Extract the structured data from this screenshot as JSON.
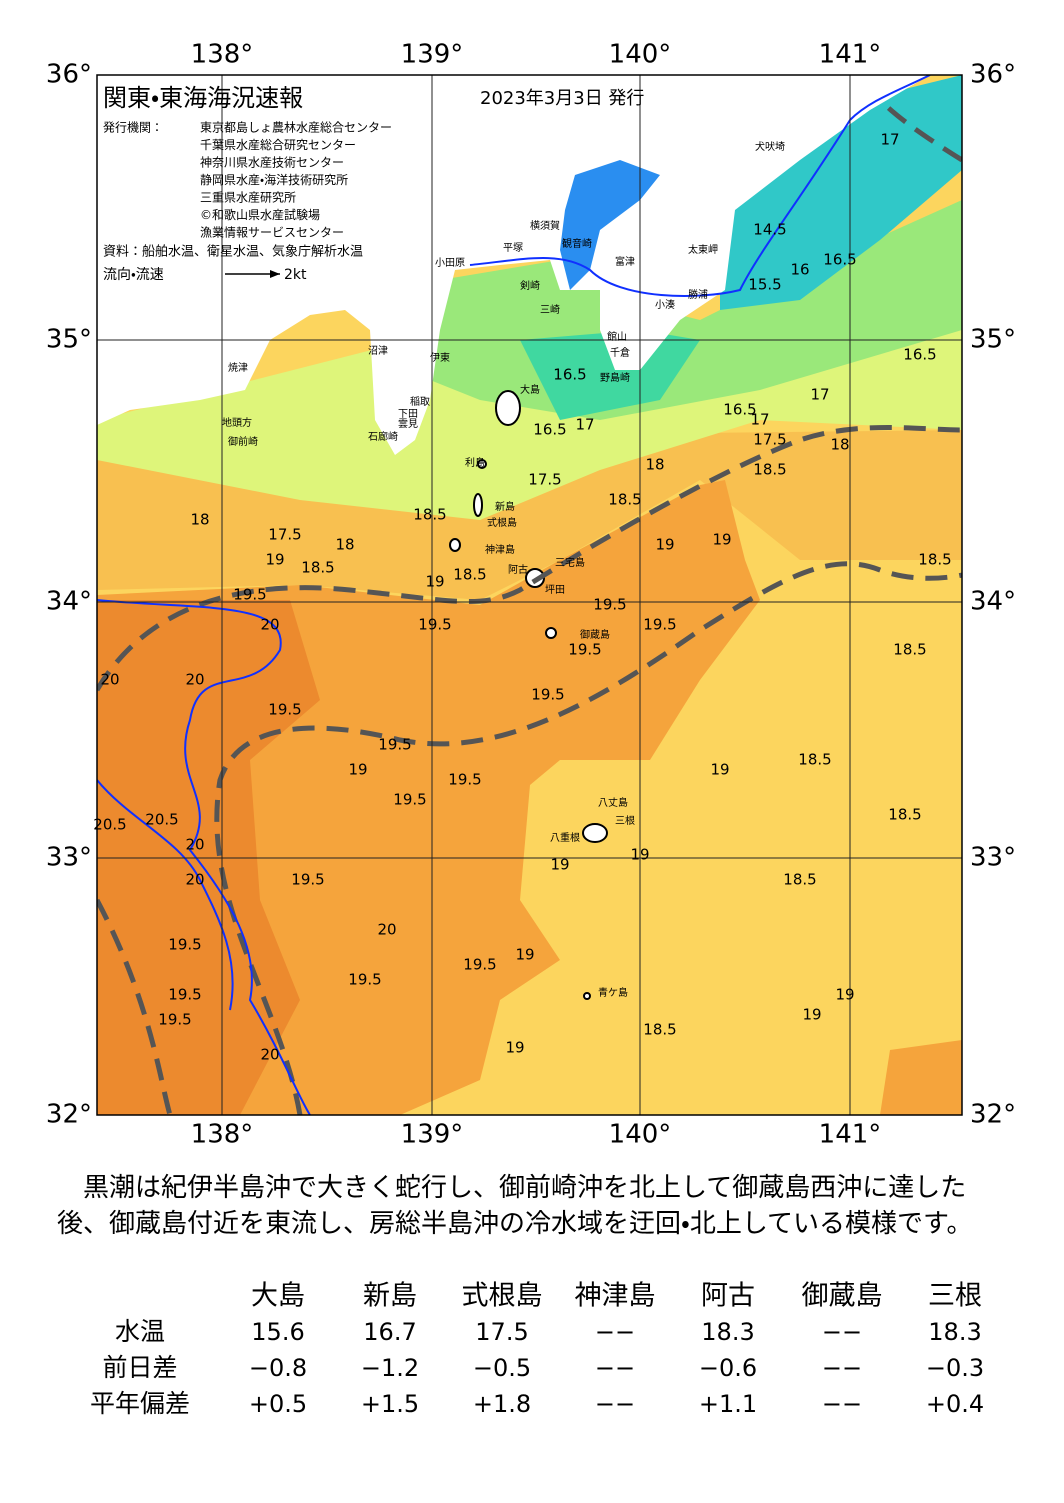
{
  "header": {
    "title": "関東・東海海況速報",
    "date": "2023年3月3日 発行",
    "publisher_label": "発行機関：",
    "publishers": [
      "東京都島しょ農林水産総合センター",
      "千葉県水産総合研究センター",
      "神奈川県水産技術センター",
      "静岡県水産・海洋技術研究所",
      "三重県水産研究所",
      "©和歌山県水産試験場",
      "漁業情報サービスセンター"
    ],
    "source": "資料：船舶水温、衛星水温、気象庁解析水温",
    "flow_label": "流向・流速",
    "flow_scale": "2kt"
  },
  "map": {
    "lon_labels": [
      "138°",
      "139°",
      "140°",
      "141°"
    ],
    "lat_labels": [
      "36°",
      "35°",
      "34°",
      "33°",
      "32°"
    ],
    "places": [
      "犬吠埼",
      "太東岬",
      "勝浦",
      "小湊",
      "館山",
      "千倉",
      "野島崎",
      "富津",
      "横須賀",
      "観音崎",
      "剣崎",
      "三崎",
      "平塚",
      "小田原",
      "大島",
      "利島",
      "新島",
      "式根島",
      "神津島",
      "阿古",
      "三宅島",
      "坪田",
      "御蔵島",
      "八丈島",
      "三根",
      "八重根",
      "青ケ島",
      "石廊崎",
      "下田",
      "稲取",
      "雲見",
      "御前崎",
      "地頭方",
      "焼津",
      "沼津",
      "伊東"
    ],
    "contours": [
      "17",
      "14.5",
      "16.5",
      "15.5",
      "16",
      "16.5",
      "16.5",
      "16.5",
      "17",
      "17",
      "16.5",
      "17",
      "17.5",
      "18",
      "18",
      "17.5",
      "18.5",
      "18.5",
      "18.5",
      "18",
      "17.5",
      "19",
      "18",
      "18.5",
      "18.5",
      "19",
      "19",
      "19",
      "18.5",
      "19.5",
      "20",
      "19.5",
      "19.5",
      "19.5",
      "19.5",
      "18.5",
      "19.5",
      "20",
      "20",
      "19.5",
      "19.5",
      "19.5",
      "19",
      "19.5",
      "18.5",
      "19",
      "18.5",
      "20.5",
      "20.5",
      "20",
      "20",
      "19.5",
      "19",
      "19",
      "18.5",
      "20",
      "19.5",
      "19.5",
      "19",
      "19.5",
      "19.5",
      "19.5",
      "18.5",
      "19",
      "19",
      "19",
      "20"
    ]
  },
  "text": {
    "paragraph": "黒潮は紀伊半島沖で大きく蛇行し、御前崎沖を北上して御蔵島西沖に達した後、御蔵島付近を東流し、房総半島沖の冷水域を迂回・北上している模様です。"
  },
  "table": {
    "columns": [
      "大島",
      "新島",
      "式根島",
      "神津島",
      "阿古",
      "御蔵島",
      "三根"
    ],
    "rows": [
      {
        "label": "水温",
        "cells": [
          "15.6",
          "16.7",
          "17.5",
          "−−",
          "18.3",
          "−−",
          "18.3"
        ]
      },
      {
        "label": "前日差",
        "cells": [
          "−0.8",
          "−1.2",
          "−0.5",
          "−−",
          "−0.6",
          "−−",
          "−0.3"
        ]
      },
      {
        "label": "平年偏差",
        "cells": [
          "+0.5",
          "+1.5",
          "+1.8",
          "−−",
          "+1.1",
          "−−",
          "+0.4"
        ]
      }
    ]
  }
}
